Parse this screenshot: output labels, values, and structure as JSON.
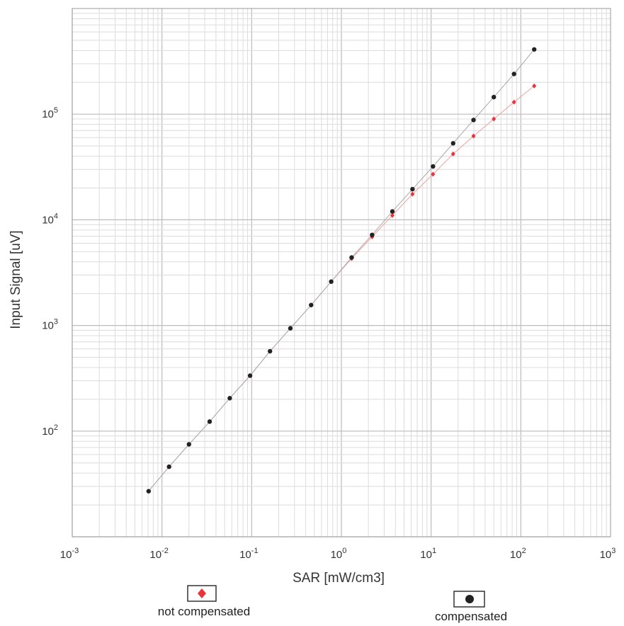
{
  "chart_data": {
    "type": "scatter",
    "title": "",
    "xlabel": "SAR [mW/cm3]",
    "ylabel": "Input Signal [uV]",
    "x_scale": "log",
    "y_scale": "log",
    "xlim": [
      0.001,
      1000
    ],
    "ylim": [
      10,
      1000000
    ],
    "grid": true,
    "x_ticks": [
      {
        "base": "10",
        "exp": "-3"
      },
      {
        "base": "10",
        "exp": "-2"
      },
      {
        "base": "10",
        "exp": "-1"
      },
      {
        "base": "10",
        "exp": "0"
      },
      {
        "base": "10",
        "exp": "1"
      },
      {
        "base": "10",
        "exp": "2"
      },
      {
        "base": "10",
        "exp": "3"
      }
    ],
    "y_ticks": [
      {
        "base": "10",
        "exp": "2"
      },
      {
        "base": "10",
        "exp": "3"
      },
      {
        "base": "10",
        "exp": "4"
      },
      {
        "base": "10",
        "exp": "5"
      }
    ],
    "legend_position": "bottom",
    "series": [
      {
        "name": "not compensated",
        "color": "#e8343a",
        "marker": "diamond",
        "x": [
          0.0071,
          0.012,
          0.02,
          0.034,
          0.057,
          0.096,
          0.16,
          0.27,
          0.46,
          0.77,
          1.3,
          2.2,
          3.7,
          6.2,
          10.5,
          17.6,
          29.7,
          50,
          84,
          141
        ],
        "y": [
          27,
          46,
          75,
          123,
          205,
          335,
          570,
          940,
          1560,
          2600,
          4300,
          6900,
          11000,
          17500,
          27000,
          42000,
          62000,
          90000,
          130000,
          185000
        ]
      },
      {
        "name": "compensated",
        "color": "#222222",
        "marker": "circle",
        "x": [
          0.0071,
          0.012,
          0.02,
          0.034,
          0.057,
          0.096,
          0.16,
          0.27,
          0.46,
          0.77,
          1.3,
          2.2,
          3.7,
          6.2,
          10.5,
          17.6,
          29.7,
          50,
          84,
          141
        ],
        "y": [
          27,
          46,
          75,
          123,
          205,
          335,
          570,
          940,
          1560,
          2600,
          4400,
          7200,
          12000,
          19500,
          32000,
          53000,
          88000,
          145000,
          240000,
          410000
        ]
      }
    ]
  }
}
